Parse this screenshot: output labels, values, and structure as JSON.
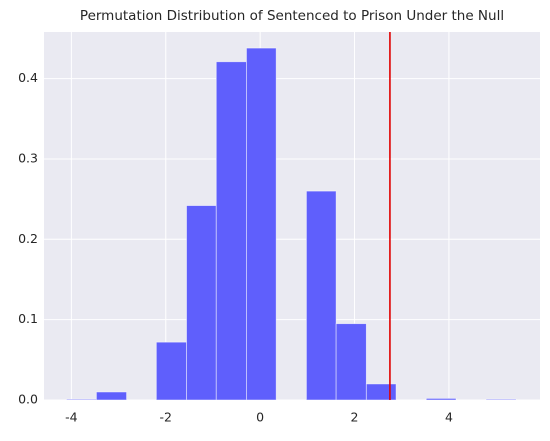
{
  "chart_data": {
    "type": "histogram",
    "title": "Permutation Distribution of Sentenced to Prison Under the Null",
    "bins": [
      -4.1,
      -3.47,
      -2.83,
      -2.2,
      -1.56,
      -0.93,
      -0.29,
      0.34,
      0.98,
      1.61,
      2.25,
      2.88,
      3.52,
      4.15,
      4.79,
      5.42
    ],
    "values": [
      0.001,
      0.01,
      0,
      0.072,
      0.242,
      0.421,
      0.438,
      0,
      0.26,
      0.095,
      0.02,
      0,
      0.002,
      0,
      0.001
    ],
    "color": "#5f5ffc",
    "vline": {
      "x": 2.75,
      "color": "#e00000"
    },
    "xlim": [
      -4.58,
      5.93
    ],
    "xticks": [
      -4,
      -2,
      0,
      2,
      4
    ],
    "ylim": [
      0,
      0.458
    ],
    "yticks": [
      {
        "value": 0,
        "label": "0.0"
      },
      0.1,
      0.2,
      0.3,
      0.4
    ],
    "grid": true
  }
}
